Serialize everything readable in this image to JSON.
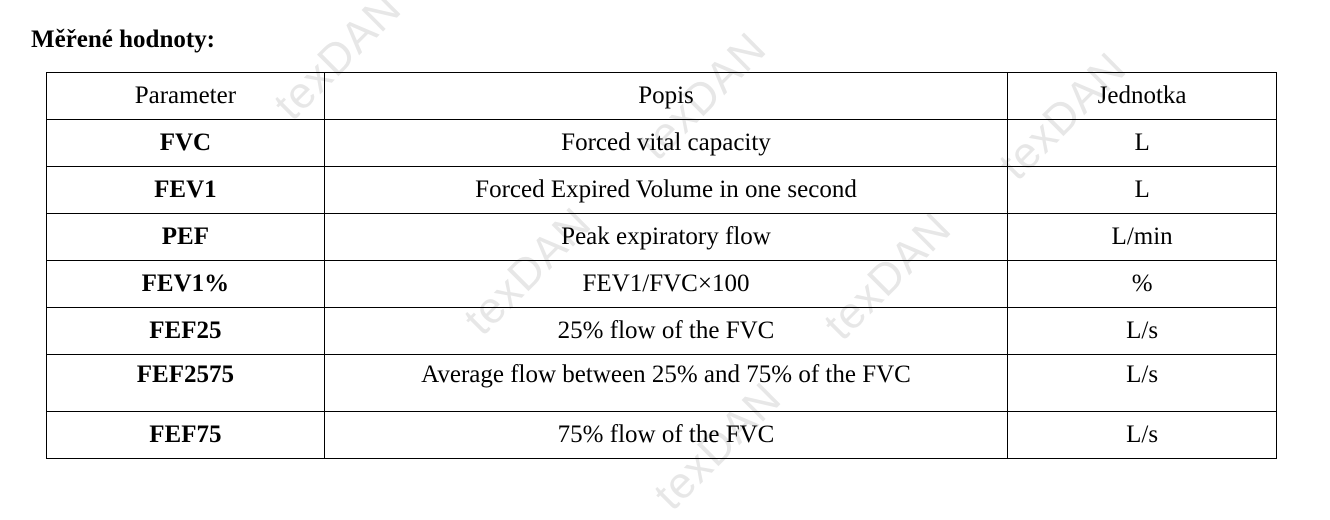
{
  "title": "Měřené hodnoty:",
  "watermark": "texDAN",
  "table": {
    "headers": [
      "Parameter",
      "Popis",
      "Jednotka"
    ],
    "rows": [
      {
        "parameter": "FVC",
        "popis": "Forced vital capacity",
        "jednotka": "L"
      },
      {
        "parameter": "FEV1",
        "popis": "Forced Expired Volume in one second",
        "jednotka": "L"
      },
      {
        "parameter": "PEF",
        "popis": "Peak expiratory flow",
        "jednotka": "L/min"
      },
      {
        "parameter": "FEV1%",
        "popis": "FEV1/FVC×100",
        "jednotka": "%"
      },
      {
        "parameter": "FEF25",
        "popis": "25% flow of the FVC",
        "jednotka": "L/s"
      },
      {
        "parameter": "FEF2575",
        "popis": "Average flow between 25% and 75% of the FVC",
        "jednotka": "L/s"
      },
      {
        "parameter": "FEF75",
        "popis": "75% flow of the FVC",
        "jednotka": "L/s"
      }
    ]
  }
}
